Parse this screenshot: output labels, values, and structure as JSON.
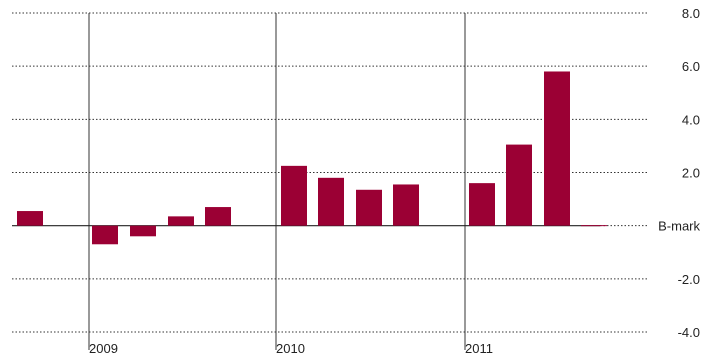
{
  "chart_data": {
    "type": "bar",
    "title": "",
    "xlabel": "",
    "ylabel": "",
    "y_axis_position": "right",
    "ylim": [
      -4.0,
      8.0
    ],
    "y_ticks": [
      {
        "value": 8.0,
        "label": "8.0"
      },
      {
        "value": 6.0,
        "label": "6.0"
      },
      {
        "value": 4.0,
        "label": "4.0"
      },
      {
        "value": 2.0,
        "label": "2.0"
      },
      {
        "value": 0.0,
        "label": "B-mark"
      },
      {
        "value": -2.0,
        "label": "-2.0"
      },
      {
        "value": -4.0,
        "label": "-4.0"
      }
    ],
    "grid": "horizontal dotted",
    "year_labels": [
      "2009",
      "2010",
      "2011"
    ],
    "bar_color": "#9b0034",
    "series": [
      {
        "values": [
          0.55,
          -0.7,
          -0.4,
          0.35,
          0.7,
          2.25,
          1.8,
          1.35,
          1.55,
          1.6,
          3.05,
          5.8,
          0.02
        ]
      }
    ]
  }
}
